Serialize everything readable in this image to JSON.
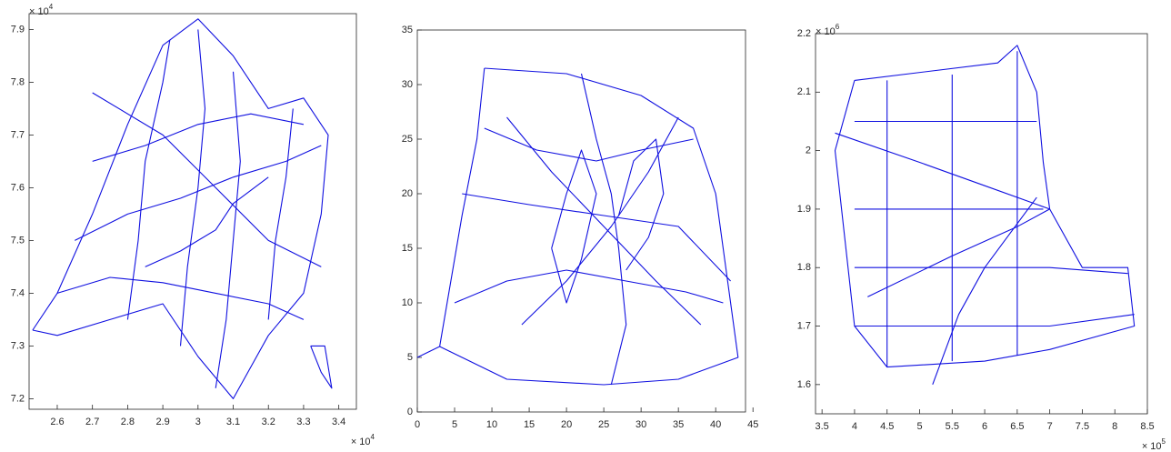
{
  "chart_data": [
    {
      "type": "network",
      "color": "#1010e0",
      "xlim": [
        2.52,
        3.45
      ],
      "ylim": [
        7.18,
        7.93
      ],
      "xticks": [
        2.6,
        2.7,
        2.8,
        2.9,
        3,
        3.1,
        3.2,
        3.3,
        3.4
      ],
      "yticks": [
        7.2,
        7.3,
        7.4,
        7.5,
        7.6,
        7.7,
        7.8,
        7.9
      ],
      "x_multiplier": {
        "base": "× 10",
        "exponent": "4"
      },
      "y_multiplier": {
        "base": "× 10",
        "exponent": "4"
      },
      "series": [
        {
          "x": [
            2.53,
            2.6,
            2.7,
            2.8,
            2.9,
            3.0,
            3.1,
            3.2,
            3.3,
            3.37,
            3.35,
            3.3,
            3.2,
            3.1,
            3.0,
            2.9,
            2.75,
            2.6,
            2.53
          ],
          "values": [
            7.33,
            7.4,
            7.55,
            7.72,
            7.87,
            7.92,
            7.85,
            7.75,
            7.77,
            7.7,
            7.55,
            7.4,
            7.32,
            7.2,
            7.28,
            7.38,
            7.35,
            7.32,
            7.33
          ]
        },
        {
          "x": [
            2.85,
            2.95,
            3.05,
            3.1,
            3.2
          ],
          "values": [
            7.45,
            7.48,
            7.52,
            7.57,
            7.62
          ]
        },
        {
          "x": [
            2.65,
            2.8,
            2.95,
            3.1,
            3.25,
            3.35
          ],
          "values": [
            7.5,
            7.55,
            7.58,
            7.62,
            7.65,
            7.68
          ]
        },
        {
          "x": [
            2.7,
            2.85,
            3.0,
            3.15,
            3.3
          ],
          "values": [
            7.65,
            7.68,
            7.72,
            7.74,
            7.72
          ]
        },
        {
          "x": [
            2.6,
            2.75,
            2.9,
            3.05,
            3.2,
            3.3
          ],
          "values": [
            7.4,
            7.43,
            7.42,
            7.4,
            7.38,
            7.35
          ]
        },
        {
          "x": [
            2.8,
            2.83,
            2.85,
            2.9,
            2.92
          ],
          "values": [
            7.35,
            7.5,
            7.65,
            7.8,
            7.88
          ]
        },
        {
          "x": [
            2.95,
            2.97,
            3.0,
            3.02,
            3.0
          ],
          "values": [
            7.3,
            7.45,
            7.6,
            7.75,
            7.9
          ]
        },
        {
          "x": [
            3.05,
            3.08,
            3.1,
            3.12,
            3.1
          ],
          "values": [
            7.22,
            7.35,
            7.5,
            7.65,
            7.82
          ]
        },
        {
          "x": [
            3.2,
            3.22,
            3.25,
            3.27
          ],
          "values": [
            7.35,
            7.5,
            7.62,
            7.75
          ]
        },
        {
          "x": [
            2.7,
            2.9,
            3.05,
            3.2,
            3.35
          ],
          "values": [
            7.78,
            7.7,
            7.6,
            7.5,
            7.45
          ]
        },
        {
          "x": [
            3.32,
            3.35,
            3.38,
            3.36,
            3.32
          ],
          "values": [
            7.3,
            7.25,
            7.22,
            7.3,
            7.3
          ]
        }
      ]
    },
    {
      "type": "network",
      "color": "#1010e0",
      "xlim": [
        0,
        44
      ],
      "ylim": [
        0,
        35
      ],
      "xticks": [
        0,
        5,
        10,
        15,
        20,
        25,
        30,
        35,
        40,
        45
      ],
      "yticks": [
        0,
        5,
        10,
        15,
        20,
        25,
        30,
        35
      ],
      "series": [
        {
          "x": [
            9,
            20,
            30,
            37,
            40,
            43,
            35,
            25,
            12,
            3,
            0
          ],
          "values": [
            31.5,
            31,
            29,
            26,
            20,
            5,
            3,
            2.5,
            3,
            6,
            5
          ]
        },
        {
          "x": [
            9,
            8,
            6,
            4,
            3
          ],
          "values": [
            31.5,
            25,
            18,
            10,
            6
          ]
        },
        {
          "x": [
            6,
            15,
            25,
            35,
            42
          ],
          "values": [
            20,
            19,
            18,
            17,
            12
          ]
        },
        {
          "x": [
            12,
            18,
            25,
            32,
            38
          ],
          "values": [
            27,
            22,
            17,
            12,
            8
          ]
        },
        {
          "x": [
            14,
            20,
            26,
            31,
            35
          ],
          "values": [
            8,
            12,
            17,
            22,
            27
          ]
        },
        {
          "x": [
            22,
            24,
            26,
            27,
            28,
            26
          ],
          "values": [
            31,
            25,
            20,
            15,
            8,
            2.5
          ]
        },
        {
          "x": [
            5,
            12,
            20,
            28,
            36,
            41
          ],
          "values": [
            10,
            12,
            13,
            12,
            11,
            10
          ]
        },
        {
          "x": [
            9,
            16,
            24,
            30,
            37
          ],
          "values": [
            26,
            24,
            23,
            24,
            25
          ]
        },
        {
          "x": [
            18,
            20,
            22,
            24,
            22,
            20,
            18
          ],
          "values": [
            15,
            20,
            24,
            20,
            14,
            10,
            15
          ]
        },
        {
          "x": [
            28,
            31,
            33,
            32,
            29,
            27
          ],
          "values": [
            13,
            16,
            20,
            25,
            23,
            18
          ]
        }
      ]
    },
    {
      "type": "network",
      "color": "#1010e0",
      "xlim": [
        3.4,
        8.5
      ],
      "ylim": [
        1.55,
        2.2
      ],
      "xticks": [
        3.5,
        4,
        4.5,
        5,
        5.5,
        6,
        6.5,
        7,
        7.5,
        8,
        8.5
      ],
      "yticks": [
        1.6,
        1.7,
        1.8,
        1.9,
        2,
        2.1,
        2.2
      ],
      "x_multiplier": {
        "base": "× 10",
        "exponent": "5"
      },
      "y_multiplier": {
        "base": "× 10",
        "exponent": "6"
      },
      "series": [
        {
          "x": [
            4,
            6.2,
            6.5,
            6.8,
            6.9,
            7.0,
            7.5,
            8.2,
            8.3,
            7,
            6,
            4.5,
            4,
            3.7,
            4
          ],
          "values": [
            2.12,
            2.15,
            2.18,
            2.1,
            1.98,
            1.9,
            1.8,
            1.8,
            1.7,
            1.66,
            1.64,
            1.63,
            1.7,
            2.0,
            2.12
          ]
        },
        {
          "x": [
            3.7,
            5,
            6,
            7.0
          ],
          "values": [
            2.03,
            1.98,
            1.94,
            1.9
          ]
        },
        {
          "x": [
            4.2,
            5.5,
            6.5,
            7.0
          ],
          "values": [
            1.75,
            1.82,
            1.87,
            1.9
          ]
        },
        {
          "x": [
            4,
            5,
            6,
            7,
            8.2
          ],
          "values": [
            1.8,
            1.8,
            1.8,
            1.8,
            1.79
          ]
        },
        {
          "x": [
            4,
            5,
            6,
            6.9
          ],
          "values": [
            1.9,
            1.9,
            1.9,
            1.9
          ]
        },
        {
          "x": [
            4,
            5,
            6,
            6.8
          ],
          "values": [
            2.05,
            2.05,
            2.05,
            2.05
          ]
        },
        {
          "x": [
            4.5,
            4.5,
            4.5,
            4.5
          ],
          "values": [
            2.12,
            1.9,
            1.75,
            1.63
          ]
        },
        {
          "x": [
            5.5,
            5.5,
            5.5,
            5.5
          ],
          "values": [
            2.13,
            1.95,
            1.8,
            1.64
          ]
        },
        {
          "x": [
            6.5,
            6.5,
            6.5
          ],
          "values": [
            2.17,
            1.85,
            1.65
          ]
        },
        {
          "x": [
            4,
            5,
            6,
            7,
            8.3
          ],
          "values": [
            1.7,
            1.7,
            1.7,
            1.7,
            1.72
          ]
        },
        {
          "x": [
            5.2,
            5.6,
            6.0,
            6.4,
            6.8
          ],
          "values": [
            1.6,
            1.72,
            1.8,
            1.86,
            1.92
          ]
        }
      ]
    }
  ]
}
